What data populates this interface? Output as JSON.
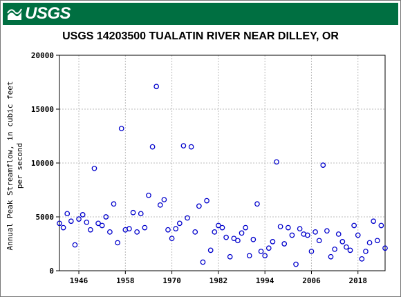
{
  "banner": {
    "logo_text": "USGS",
    "color": "#006f41"
  },
  "chart_title": "USGS 14203500 TUALATIN RIVER NEAR DILLEY, OR",
  "chart_data": {
    "type": "scatter",
    "title": "USGS 14203500 TUALATIN RIVER NEAR DILLEY, OR",
    "xlabel": "",
    "ylabel_lines": [
      "Annual Peak Streamflow, in cubic feet",
      "per second"
    ],
    "xlim": [
      1941,
      2025
    ],
    "ylim": [
      0,
      20000
    ],
    "x_ticks": [
      "1946",
      "1958",
      "1970",
      "1982",
      "1994",
      "2006",
      "2018"
    ],
    "y_ticks": [
      "0",
      "5000",
      "10000",
      "15000",
      "20000"
    ],
    "grid": true,
    "marker_color": "#0000cc",
    "points": [
      {
        "x": 1941,
        "y": 4400
      },
      {
        "x": 1942,
        "y": 4000
      },
      {
        "x": 1943,
        "y": 5300
      },
      {
        "x": 1944,
        "y": 4600
      },
      {
        "x": 1945,
        "y": 2400
      },
      {
        "x": 1946,
        "y": 4800
      },
      {
        "x": 1947,
        "y": 5200
      },
      {
        "x": 1948,
        "y": 4500
      },
      {
        "x": 1949,
        "y": 3800
      },
      {
        "x": 1950,
        "y": 9500
      },
      {
        "x": 1951,
        "y": 4400
      },
      {
        "x": 1952,
        "y": 4200
      },
      {
        "x": 1953,
        "y": 5000
      },
      {
        "x": 1954,
        "y": 3600
      },
      {
        "x": 1955,
        "y": 6200
      },
      {
        "x": 1956,
        "y": 2600
      },
      {
        "x": 1957,
        "y": 13200
      },
      {
        "x": 1958,
        "y": 3800
      },
      {
        "x": 1959,
        "y": 3900
      },
      {
        "x": 1960,
        "y": 5400
      },
      {
        "x": 1961,
        "y": 3600
      },
      {
        "x": 1962,
        "y": 5300
      },
      {
        "x": 1963,
        "y": 4000
      },
      {
        "x": 1964,
        "y": 7000
      },
      {
        "x": 1965,
        "y": 11500
      },
      {
        "x": 1966,
        "y": 17100
      },
      {
        "x": 1967,
        "y": 6100
      },
      {
        "x": 1968,
        "y": 6600
      },
      {
        "x": 1969,
        "y": 3800
      },
      {
        "x": 1970,
        "y": 3000
      },
      {
        "x": 1971,
        "y": 3900
      },
      {
        "x": 1972,
        "y": 4400
      },
      {
        "x": 1973,
        "y": 11600
      },
      {
        "x": 1974,
        "y": 4900
      },
      {
        "x": 1975,
        "y": 11500
      },
      {
        "x": 1976,
        "y": 3600
      },
      {
        "x": 1977,
        "y": 6000
      },
      {
        "x": 1978,
        "y": 800
      },
      {
        "x": 1979,
        "y": 6500
      },
      {
        "x": 1980,
        "y": 1900
      },
      {
        "x": 1981,
        "y": 3600
      },
      {
        "x": 1982,
        "y": 4200
      },
      {
        "x": 1983,
        "y": 4000
      },
      {
        "x": 1984,
        "y": 3100
      },
      {
        "x": 1985,
        "y": 1300
      },
      {
        "x": 1986,
        "y": 3000
      },
      {
        "x": 1987,
        "y": 2800
      },
      {
        "x": 1988,
        "y": 3500
      },
      {
        "x": 1989,
        "y": 4000
      },
      {
        "x": 1990,
        "y": 1400
      },
      {
        "x": 1991,
        "y": 2900
      },
      {
        "x": 1992,
        "y": 6200
      },
      {
        "x": 1993,
        "y": 1800
      },
      {
        "x": 1994,
        "y": 1400
      },
      {
        "x": 1995,
        "y": 2100
      },
      {
        "x": 1996,
        "y": 2700
      },
      {
        "x": 1997,
        "y": 10100
      },
      {
        "x": 1998,
        "y": 4100
      },
      {
        "x": 1999,
        "y": 2500
      },
      {
        "x": 2000,
        "y": 4000
      },
      {
        "x": 2001,
        "y": 3300
      },
      {
        "x": 2002,
        "y": 600
      },
      {
        "x": 2003,
        "y": 3900
      },
      {
        "x": 2004,
        "y": 3400
      },
      {
        "x": 2005,
        "y": 3300
      },
      {
        "x": 2006,
        "y": 1800
      },
      {
        "x": 2007,
        "y": 3600
      },
      {
        "x": 2008,
        "y": 2800
      },
      {
        "x": 2009,
        "y": 9800
      },
      {
        "x": 2010,
        "y": 3700
      },
      {
        "x": 2011,
        "y": 1300
      },
      {
        "x": 2012,
        "y": 2000
      },
      {
        "x": 2013,
        "y": 3400
      },
      {
        "x": 2014,
        "y": 2700
      },
      {
        "x": 2015,
        "y": 2200
      },
      {
        "x": 2016,
        "y": 1900
      },
      {
        "x": 2017,
        "y": 4200
      },
      {
        "x": 2018,
        "y": 3300
      },
      {
        "x": 2019,
        "y": 1100
      },
      {
        "x": 2020,
        "y": 1800
      },
      {
        "x": 2021,
        "y": 2600
      },
      {
        "x": 2022,
        "y": 4600
      },
      {
        "x": 2023,
        "y": 2800
      },
      {
        "x": 2024,
        "y": 4200
      },
      {
        "x": 2025,
        "y": 2100
      }
    ]
  }
}
